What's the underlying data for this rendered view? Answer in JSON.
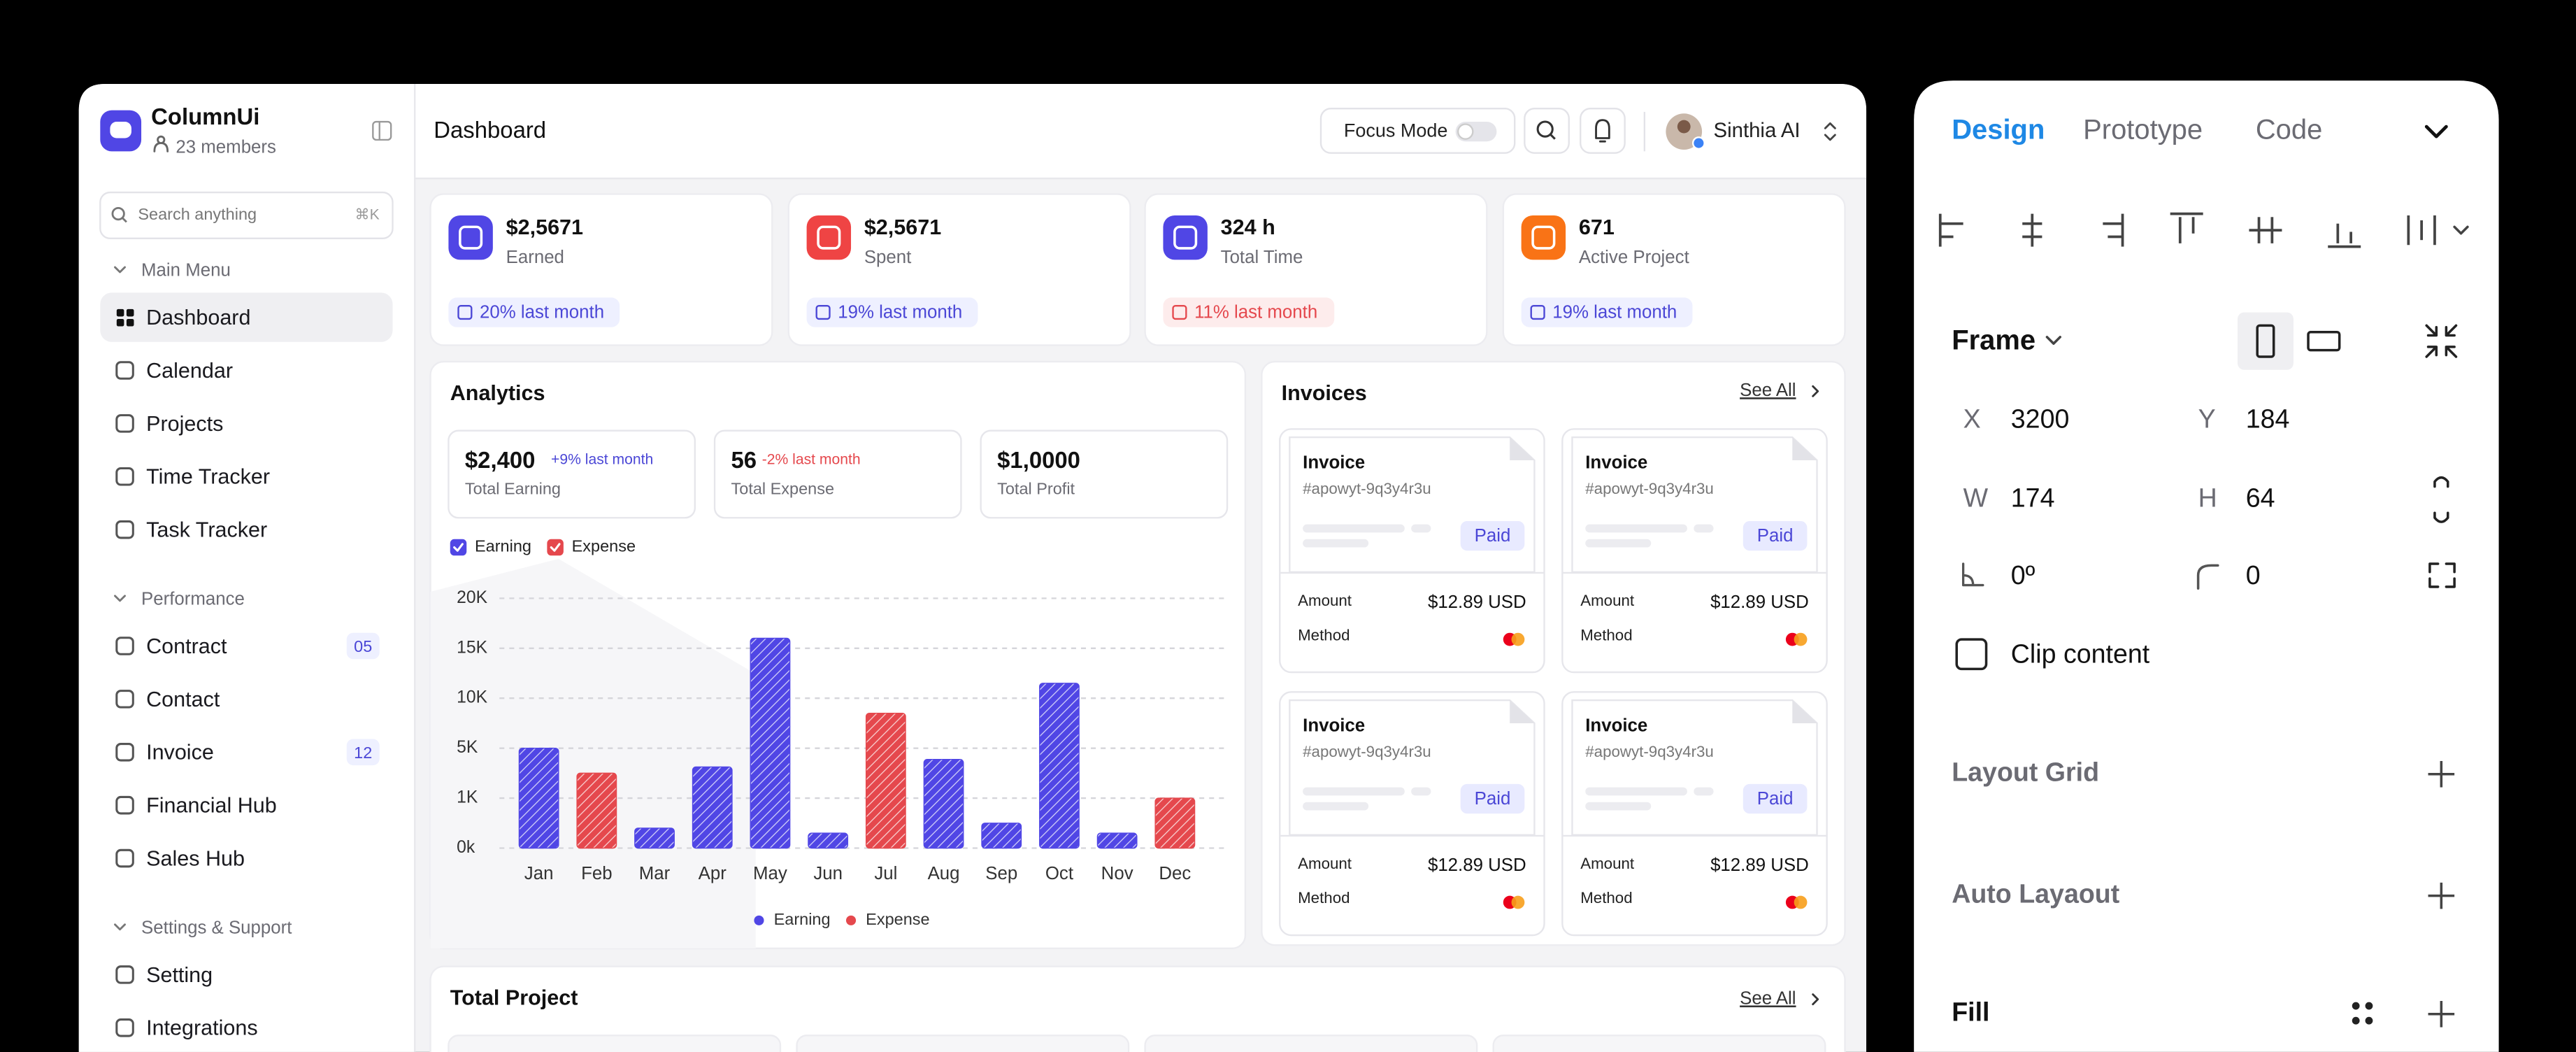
{
  "sidebar": {
    "brand": "ColumnUi",
    "members": "23 members",
    "search": "Search anything",
    "shortcut": "⌘K",
    "sections": [
      {
        "title": "Main Menu",
        "items": [
          {
            "label": "Dashboard"
          },
          {
            "label": "Calendar"
          },
          {
            "label": "Projects"
          },
          {
            "label": "Time Tracker"
          },
          {
            "label": "Task Tracker"
          }
        ]
      },
      {
        "title": "Performance",
        "items": [
          {
            "label": "Contract",
            "badge": "05"
          },
          {
            "label": "Contact"
          },
          {
            "label": "Invoice",
            "badge": "12"
          },
          {
            "label": "Financial Hub"
          },
          {
            "label": "Sales Hub"
          }
        ]
      },
      {
        "title": "Settings & Support",
        "items": [
          {
            "label": "Setting"
          },
          {
            "label": "Integrations"
          }
        ]
      }
    ]
  },
  "header": {
    "title": "Dashboard",
    "focus": "Focus Mode",
    "user": "Sinthia AI"
  },
  "stats": [
    {
      "value": "$2,5671",
      "label": "Earned",
      "change": "20% last month"
    },
    {
      "value": "$2,5671",
      "label": "Spent",
      "change": "19% last month"
    },
    {
      "value": "324 h",
      "label": "Total Time",
      "change": "11% last month"
    },
    {
      "value": "671",
      "label": "Active Project",
      "change": "19% last month"
    }
  ],
  "analytics": {
    "title": "Analytics",
    "kpis": [
      {
        "value": "$2,400",
        "change": "+9% last month",
        "label": "Total Earning"
      },
      {
        "value": "56",
        "change": "-2% last month",
        "label": "Total Expense"
      },
      {
        "value": "$1,0000",
        "label": "Total Profit"
      }
    ]
  },
  "chart_data": {
    "type": "bar",
    "categories": [
      "Jan",
      "Feb",
      "Mar",
      "Apr",
      "May",
      "Jun",
      "Jul",
      "Aug",
      "Sep",
      "Oct",
      "Nov",
      "Dec"
    ],
    "series": [
      {
        "name": "Earning",
        "color": "#5046e5",
        "values": [
          5000,
          null,
          400,
          3500,
          16000,
          300,
          null,
          4100,
          500,
          11500,
          300,
          null
        ]
      },
      {
        "name": "Expense",
        "color": "#e5484d",
        "values": [
          null,
          3000,
          null,
          null,
          null,
          null,
          8500,
          null,
          null,
          null,
          null,
          1000
        ]
      }
    ],
    "ylim": [
      0,
      20000
    ],
    "yticks": [
      {
        "value": 0,
        "label": "0k"
      },
      {
        "value": 1000,
        "label": "1K"
      },
      {
        "value": 5000,
        "label": "5K"
      },
      {
        "value": 10000,
        "label": "10K"
      },
      {
        "value": 15000,
        "label": "15K"
      },
      {
        "value": 20000,
        "label": "20K"
      }
    ],
    "grid": true
  },
  "invoices": {
    "title": "Invoices",
    "see_all": "See All",
    "cards": [
      {
        "title": "Invoice",
        "id": "#apowyt-9q3y4r3u",
        "status": "Paid",
        "amount_label": "Amount",
        "amount": "$12.89 USD",
        "method_label": "Method"
      },
      {
        "title": "Invoice",
        "id": "#apowyt-9q3y4r3u",
        "status": "Paid",
        "amount_label": "Amount",
        "amount": "$12.89 USD",
        "method_label": "Method"
      },
      {
        "title": "Invoice",
        "id": "#apowyt-9q3y4r3u",
        "status": "Paid",
        "amount_label": "Amount",
        "amount": "$12.89 USD",
        "method_label": "Method"
      },
      {
        "title": "Invoice",
        "id": "#apowyt-9q3y4r3u",
        "status": "Paid",
        "amount_label": "Amount",
        "amount": "$12.89 USD",
        "method_label": "Method"
      }
    ]
  },
  "total_project": {
    "title": "Total Project",
    "see_all": "See All"
  },
  "design_panel": {
    "tabs": [
      "Design",
      "Prototype",
      "Code"
    ],
    "frame": "Frame",
    "fields": [
      {
        "label": "X",
        "value": "3200"
      },
      {
        "label": "Y",
        "value": "184"
      },
      {
        "label": "W",
        "value": "174"
      },
      {
        "label": "H",
        "value": "64"
      }
    ],
    "rotation": "0º",
    "radius": "0",
    "clip": "Clip content",
    "sections": [
      "Layout Grid",
      "Auto Layaout",
      "Fill"
    ]
  }
}
